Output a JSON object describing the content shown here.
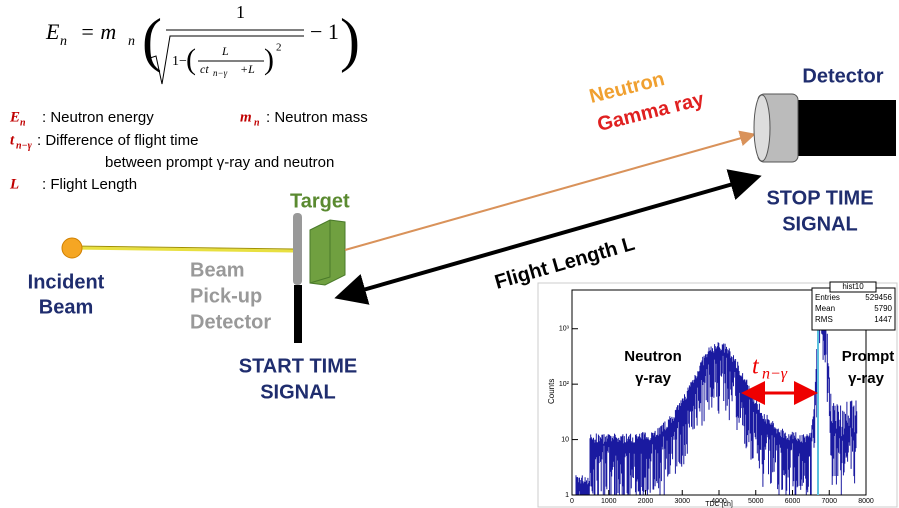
{
  "formula": {
    "lhs": "E",
    "lhs_sub": "n",
    "eq": "= m",
    "eq_sub": "n",
    "numerator": "1",
    "root_one": "1−",
    "inner_num": "L",
    "inner_den": "ct",
    "inner_den_sub": "n−γ",
    "inner_den_tail": "+L",
    "power": "2",
    "tail": "− 1"
  },
  "legend": [
    {
      "symbol": "E",
      "sub": "n",
      "text": ": Neutron energy"
    },
    {
      "symbol": "m",
      "sub": "n",
      "text": ": Neutron mass"
    },
    {
      "symbol": "t",
      "sub": "n−γ",
      "text": ": Difference of flight time",
      "continuation": "between prompt γ-ray and neutron"
    },
    {
      "symbol": "L",
      "text": ":  Flight Length"
    }
  ],
  "labels": {
    "incident_beam": [
      "Incident",
      "Beam"
    ],
    "target": "Target",
    "pickup": [
      "Beam",
      "Pick-up",
      "Detector"
    ],
    "start_signal": [
      "START TIME",
      "SIGNAL"
    ],
    "detector": "Detector",
    "stop_signal": [
      "STOP TIME",
      "SIGNAL"
    ],
    "particles": [
      "Neutron",
      "Gamma ray"
    ],
    "flight_length": "Flight Length  L"
  },
  "histogram": {
    "title": "hist10",
    "stats": [
      [
        "Entries",
        529456
      ],
      [
        "Mean",
        5790
      ],
      [
        "RMS",
        1447
      ]
    ],
    "xlabel": "TDC [ch]",
    "ylabel": "Counts",
    "xlim": [
      0,
      8000
    ],
    "xticks": [
      0,
      1000,
      2000,
      3000,
      4000,
      5000,
      6000,
      7000,
      8000
    ],
    "ylim": [
      1,
      5000
    ],
    "log_y": true,
    "yticks": [
      1,
      10,
      {
        "value": 100,
        "label": "10²"
      },
      {
        "value": 1000,
        "label": "10³"
      }
    ],
    "annotations": {
      "neutron": [
        "Neutron",
        "γ-ray"
      ],
      "prompt": [
        "Prompt",
        "γ-ray"
      ],
      "t": "t",
      "t_sub": "n−γ"
    }
  }
}
